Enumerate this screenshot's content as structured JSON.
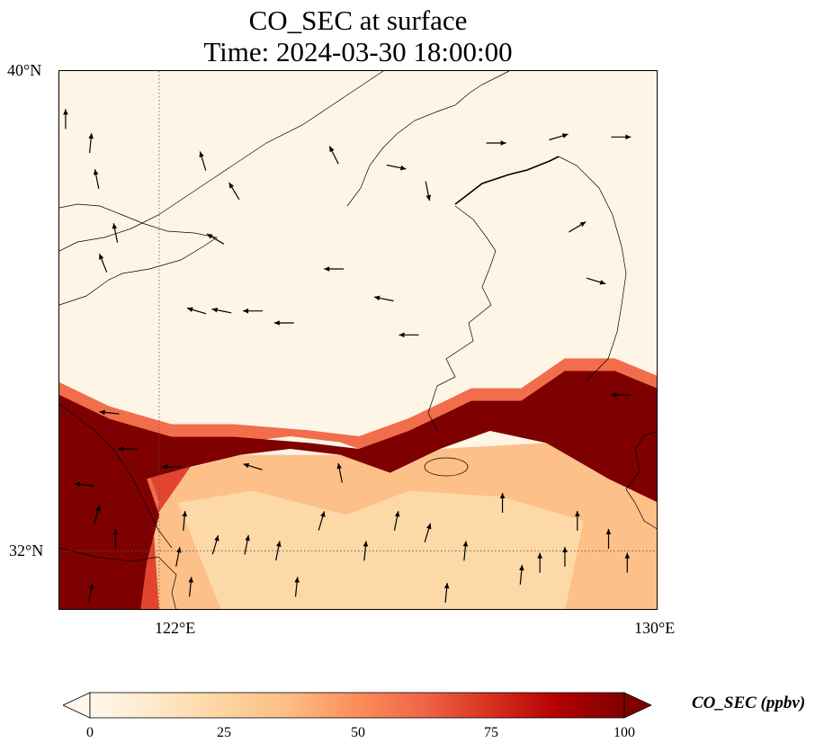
{
  "title": {
    "line1": "CO_SEC at surface",
    "line2": "Time: 2024-03-30 18:00:00"
  },
  "axes": {
    "lat_labels": [
      "40°N",
      "32°N"
    ],
    "lon_labels": [
      "122°E",
      "130°E"
    ],
    "extent": {
      "lon_min": 120.4,
      "lon_max": 130.0,
      "lat_min": 31.0,
      "lat_max": 40.0
    },
    "gridlines": {
      "lons": [
        122
      ],
      "lats": [
        32
      ],
      "style": "dotted"
    }
  },
  "colorbar": {
    "label": "CO_SEC (ppbv)",
    "ticks": [
      "0",
      "25",
      "50",
      "75",
      "100"
    ],
    "min": 0,
    "max": 100,
    "colormap": "OrRd",
    "extend": "both",
    "colors": [
      "#fff7ec",
      "#fee8c8",
      "#fdd49e",
      "#fdbb84",
      "#fc8d59",
      "#ef6548",
      "#d7301f",
      "#b30000",
      "#7f0000"
    ]
  },
  "field": {
    "variable": "CO_SEC",
    "level": "surface",
    "units": "ppbv",
    "plume": {
      "polygon": [
        [
          120.4,
          34.6
        ],
        [
          121.2,
          34.2
        ],
        [
          122.2,
          33.9
        ],
        [
          123.2,
          33.9
        ],
        [
          124.4,
          33.8
        ],
        [
          125.2,
          33.7
        ],
        [
          126.0,
          34.0
        ],
        [
          127.0,
          34.5
        ],
        [
          127.8,
          34.5
        ],
        [
          128.5,
          35.0
        ],
        [
          129.3,
          35.0
        ],
        [
          130.0,
          34.7
        ],
        [
          130.0,
          32.8
        ],
        [
          129.2,
          33.2
        ],
        [
          128.2,
          33.8
        ],
        [
          127.3,
          34.0
        ],
        [
          126.5,
          33.7
        ],
        [
          125.7,
          33.3
        ],
        [
          124.9,
          33.6
        ],
        [
          124.1,
          33.7
        ],
        [
          123.3,
          33.6
        ],
        [
          122.5,
          33.4
        ],
        [
          121.8,
          33.2
        ],
        [
          122.0,
          32.6
        ],
        [
          121.8,
          31.8
        ],
        [
          121.7,
          31.0
        ],
        [
          120.4,
          31.0
        ]
      ],
      "peak_value": 100
    },
    "background_value": 2,
    "ocean_south_value": 35
  },
  "wind_vectors": [
    {
      "lon": 120.5,
      "lat": 39.2,
      "u": 0.0,
      "v": 1.0
    },
    {
      "lon": 120.9,
      "lat": 38.8,
      "u": 0.1,
      "v": 1.0
    },
    {
      "lon": 121.0,
      "lat": 38.2,
      "u": -0.2,
      "v": 1.0
    },
    {
      "lon": 121.3,
      "lat": 37.3,
      "u": -0.2,
      "v": 1.0
    },
    {
      "lon": 121.1,
      "lat": 36.8,
      "u": -0.4,
      "v": 1.0
    },
    {
      "lon": 122.6,
      "lat": 36.0,
      "u": -1.0,
      "v": 0.3
    },
    {
      "lon": 123.0,
      "lat": 36.0,
      "u": -1.0,
      "v": 0.2
    },
    {
      "lon": 123.5,
      "lat": 36.0,
      "u": -1.0,
      "v": 0.0
    },
    {
      "lon": 124.0,
      "lat": 35.8,
      "u": -1.0,
      "v": 0.0
    },
    {
      "lon": 124.8,
      "lat": 36.7,
      "u": -1.0,
      "v": 0.0
    },
    {
      "lon": 125.6,
      "lat": 36.2,
      "u": -1.0,
      "v": 0.2
    },
    {
      "lon": 126.0,
      "lat": 35.6,
      "u": -1.0,
      "v": 0.0
    },
    {
      "lon": 122.7,
      "lat": 38.5,
      "u": -0.3,
      "v": 1.0
    },
    {
      "lon": 123.2,
      "lat": 38.0,
      "u": -0.6,
      "v": 1.0
    },
    {
      "lon": 122.9,
      "lat": 37.2,
      "u": -1.0,
      "v": 0.6
    },
    {
      "lon": 124.8,
      "lat": 38.6,
      "u": -0.5,
      "v": 1.0
    },
    {
      "lon": 125.8,
      "lat": 38.4,
      "u": 1.0,
      "v": -0.2
    },
    {
      "lon": 126.3,
      "lat": 38.0,
      "u": 0.2,
      "v": -1.0
    },
    {
      "lon": 127.4,
      "lat": 38.8,
      "u": 1.0,
      "v": 0.0
    },
    {
      "lon": 128.4,
      "lat": 38.9,
      "u": 1.0,
      "v": 0.3
    },
    {
      "lon": 129.4,
      "lat": 38.9,
      "u": 1.0,
      "v": 0.0
    },
    {
      "lon": 128.7,
      "lat": 37.4,
      "u": 1.0,
      "v": 0.6
    },
    {
      "lon": 129.0,
      "lat": 36.5,
      "u": 1.0,
      "v": -0.3
    },
    {
      "lon": 129.4,
      "lat": 34.6,
      "u": -1.0,
      "v": 0.0
    },
    {
      "lon": 121.2,
      "lat": 34.3,
      "u": -1.0,
      "v": 0.1
    },
    {
      "lon": 121.5,
      "lat": 33.7,
      "u": -1.0,
      "v": 0.0
    },
    {
      "lon": 122.2,
      "lat": 33.4,
      "u": -1.0,
      "v": 0.0
    },
    {
      "lon": 123.5,
      "lat": 33.4,
      "u": -1.0,
      "v": 0.3
    },
    {
      "lon": 120.8,
      "lat": 33.1,
      "u": -1.0,
      "v": 0.1
    },
    {
      "lon": 122.4,
      "lat": 32.5,
      "u": 0.1,
      "v": 1.0
    },
    {
      "lon": 122.3,
      "lat": 31.9,
      "u": 0.2,
      "v": 1.0
    },
    {
      "lon": 122.5,
      "lat": 31.4,
      "u": 0.1,
      "v": 1.0
    },
    {
      "lon": 122.9,
      "lat": 32.1,
      "u": 0.3,
      "v": 1.0
    },
    {
      "lon": 123.4,
      "lat": 32.1,
      "u": 0.2,
      "v": 1.0
    },
    {
      "lon": 123.9,
      "lat": 32.0,
      "u": 0.2,
      "v": 1.0
    },
    {
      "lon": 124.2,
      "lat": 31.4,
      "u": 0.1,
      "v": 1.0
    },
    {
      "lon": 124.6,
      "lat": 32.5,
      "u": 0.3,
      "v": 1.0
    },
    {
      "lon": 125.3,
      "lat": 32.0,
      "u": 0.1,
      "v": 1.0
    },
    {
      "lon": 125.8,
      "lat": 32.5,
      "u": 0.2,
      "v": 1.0
    },
    {
      "lon": 126.3,
      "lat": 32.3,
      "u": 0.3,
      "v": 1.0
    },
    {
      "lon": 126.9,
      "lat": 32.0,
      "u": 0.1,
      "v": 1.0
    },
    {
      "lon": 127.5,
      "lat": 32.8,
      "u": 0.0,
      "v": 1.0
    },
    {
      "lon": 127.8,
      "lat": 31.6,
      "u": 0.1,
      "v": 1.0
    },
    {
      "lon": 128.1,
      "lat": 31.8,
      "u": 0.0,
      "v": 1.0
    },
    {
      "lon": 128.5,
      "lat": 31.9,
      "u": 0.0,
      "v": 1.0
    },
    {
      "lon": 128.7,
      "lat": 32.5,
      "u": 0.0,
      "v": 1.0
    },
    {
      "lon": 129.2,
      "lat": 32.2,
      "u": 0.0,
      "v": 1.0
    },
    {
      "lon": 129.5,
      "lat": 31.8,
      "u": 0.0,
      "v": 1.0
    },
    {
      "lon": 126.6,
      "lat": 31.3,
      "u": 0.1,
      "v": 1.0
    },
    {
      "lon": 124.9,
      "lat": 33.3,
      "u": -0.2,
      "v": 1.0
    },
    {
      "lon": 121.3,
      "lat": 32.2,
      "u": 0.0,
      "v": 1.0
    },
    {
      "lon": 121.0,
      "lat": 32.6,
      "u": 0.3,
      "v": 1.0
    },
    {
      "lon": 120.9,
      "lat": 31.3,
      "u": 0.2,
      "v": 1.0
    }
  ]
}
